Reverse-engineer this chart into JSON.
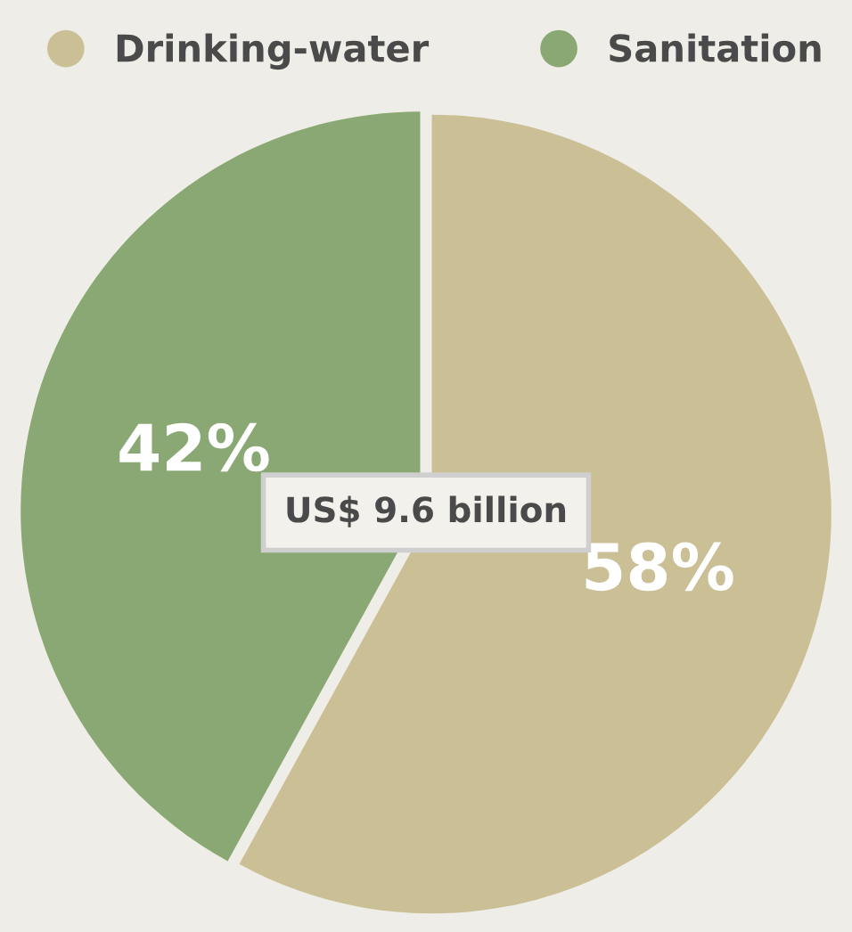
{
  "chart_data": {
    "type": "pie",
    "categories": [
      "Drinking-water",
      "Sanitation"
    ],
    "values": [
      58,
      42
    ],
    "colors": [
      "#cbbf96",
      "#8aa873"
    ],
    "value_labels": [
      "58%",
      "42%"
    ],
    "legend": "top",
    "annotations": [
      "US$ 9.6 billion"
    ]
  }
}
